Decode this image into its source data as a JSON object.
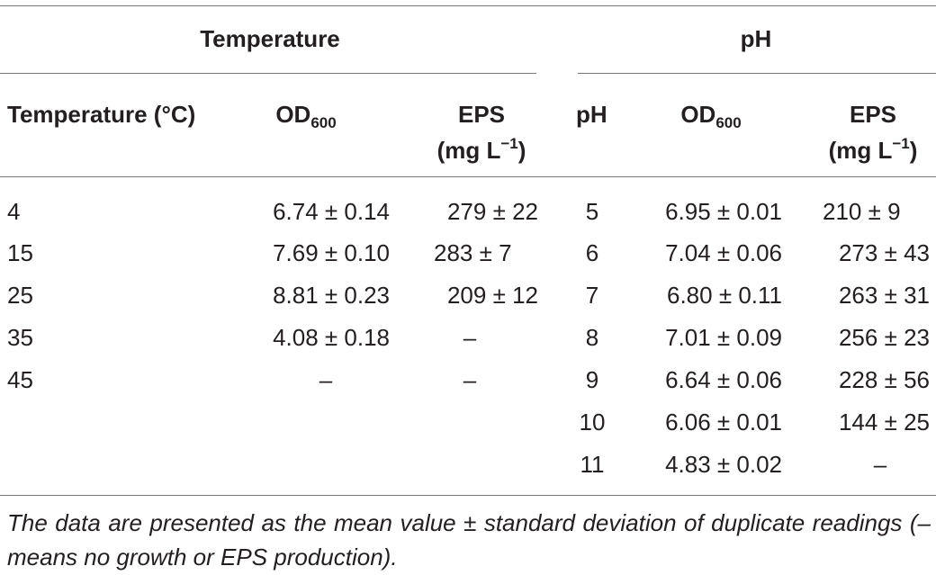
{
  "groups": {
    "temperature": "Temperature",
    "ph": "pH"
  },
  "headers": {
    "temperature": "Temperature (°C)",
    "od": "OD",
    "od_sub": "600",
    "eps_line1": "EPS",
    "eps_line2": "(mg L",
    "eps_sup": "−1",
    "eps_close": ")",
    "ph": "pH"
  },
  "temp_rows": [
    {
      "t": "4",
      "od": "6.74 ± 0.14",
      "eps": "279 ± 22"
    },
    {
      "t": "15",
      "od": "7.69 ± 0.10",
      "eps": "283 ± 7"
    },
    {
      "t": "25",
      "od": "8.81 ± 0.23",
      "eps": "209 ± 12"
    },
    {
      "t": "35",
      "od": "4.08 ± 0.18",
      "eps": "–"
    },
    {
      "t": "45",
      "od": "–",
      "eps": "–"
    }
  ],
  "ph_rows": [
    {
      "ph": "5",
      "od": "6.95 ± 0.01",
      "eps": "210 ± 9"
    },
    {
      "ph": "6",
      "od": "7.04 ± 0.06",
      "eps": "273 ± 43"
    },
    {
      "ph": "7",
      "od": "6.80 ± 0.11",
      "eps": "263 ± 31"
    },
    {
      "ph": "8",
      "od": "7.01 ± 0.09",
      "eps": "256 ± 23"
    },
    {
      "ph": "9",
      "od": "6.64 ± 0.06",
      "eps": "228 ± 56"
    },
    {
      "ph": "10",
      "od": "6.06 ± 0.01",
      "eps": "144 ± 25"
    },
    {
      "ph": "11",
      "od": "4.83 ± 0.02",
      "eps": "–"
    }
  ],
  "footnote": "The data are presented as the mean value ± standard deviation of duplicate readings (– means no growth or EPS production)."
}
